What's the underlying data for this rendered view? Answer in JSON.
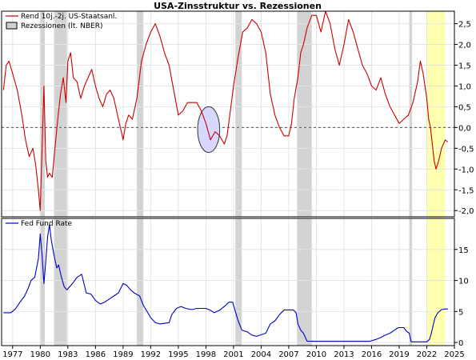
{
  "chart_data": {
    "type": "line",
    "title": "USA-Zinsstruktur vs. Rezessionen",
    "x_tick_labels": [
      "1977",
      "1980",
      "1983",
      "1986",
      "1989",
      "1992",
      "1995",
      "1998",
      "2001",
      "2004",
      "2007",
      "2010",
      "2013",
      "2016",
      "2019",
      "2022",
      "2025"
    ],
    "xlim": [
      1975.8,
      2025
    ],
    "recessions": [
      [
        1980.0,
        1980.5
      ],
      [
        1981.5,
        1982.9
      ],
      [
        1990.5,
        1991.2
      ],
      [
        2001.2,
        2001.9
      ],
      [
        2007.9,
        2009.5
      ],
      [
        2020.1,
        2020.4
      ]
    ],
    "highlight": {
      "range": [
        2022.0,
        2024.0
      ],
      "color": "#ffffb0"
    },
    "grid": true,
    "panels": [
      {
        "id": "top",
        "ylim": [
          -2.15,
          2.8
        ],
        "y_tick_labels": [
          "2,5",
          "2,0",
          "1,5",
          "1,0",
          "0,5",
          "0,0",
          "-0,5",
          "-1,0",
          "-1,5",
          "-2,0"
        ],
        "y_ticks": [
          2.5,
          2.0,
          1.5,
          1.0,
          0.5,
          0.0,
          -0.5,
          -1.0,
          -1.5,
          -2.0
        ],
        "zero_line": "dashed",
        "legend": {
          "placement": "top-left",
          "entries": [
            {
              "label": "Rend 10j.-2j. US-Staatsanl.",
              "kind": "line",
              "color": "#cc0000"
            },
            {
              "label": "Rezessionen (lt. NBER)",
              "kind": "box",
              "color": "#d0d0d0"
            }
          ]
        },
        "ellipse": {
          "center": [
            1998.3,
            -0.05
          ],
          "radii": [
            1.2,
            0.55
          ],
          "fill": "#d8d8ff",
          "stroke": "#333333"
        },
        "series": [
          {
            "name": "Rend 10j.-2j. US-Staatsanl.",
            "color": "#cc0000",
            "x": [
              1976.0,
              1976.3,
              1976.6,
              1977.0,
              1977.5,
              1978.0,
              1978.4,
              1978.8,
              1979.2,
              1979.5,
              1979.8,
              1980.0,
              1980.2,
              1980.4,
              1980.6,
              1980.8,
              1981.0,
              1981.3,
              1981.6,
              1981.9,
              1982.2,
              1982.5,
              1982.8,
              1983.0,
              1983.3,
              1983.6,
              1984.0,
              1984.4,
              1984.8,
              1985.2,
              1985.6,
              1986.0,
              1986.4,
              1986.8,
              1987.2,
              1987.6,
              1988.0,
              1988.5,
              1989.0,
              1989.3,
              1989.6,
              1990.0,
              1990.5,
              1991.0,
              1991.5,
              1992.0,
              1992.5,
              1993.0,
              1993.5,
              1994.0,
              1994.5,
              1995.0,
              1995.5,
              1996.0,
              1996.5,
              1997.0,
              1997.5,
              1998.0,
              1998.5,
              1999.0,
              1999.5,
              2000.0,
              2000.3,
              2000.6,
              2001.0,
              2001.5,
              2002.0,
              2002.5,
              2003.0,
              2003.5,
              2004.0,
              2004.5,
              2005.0,
              2005.5,
              2006.0,
              2006.5,
              2007.0,
              2007.3,
              2007.6,
              2008.0,
              2008.3,
              2008.6,
              2009.0,
              2009.5,
              2010.0,
              2010.5,
              2011.0,
              2011.5,
              2012.0,
              2012.5,
              2013.0,
              2013.5,
              2014.0,
              2014.5,
              2015.0,
              2015.5,
              2016.0,
              2016.5,
              2017.0,
              2017.5,
              2018.0,
              2018.5,
              2019.0,
              2019.5,
              2020.0,
              2020.5,
              2021.0,
              2021.3,
              2021.6,
              2022.0,
              2022.2,
              2022.4,
              2022.6,
              2022.8,
              2023.0,
              2023.3,
              2023.6,
              2024.0,
              2024.3
            ],
            "y": [
              0.9,
              1.5,
              1.6,
              1.3,
              0.9,
              0.3,
              -0.3,
              -0.7,
              -0.5,
              -0.9,
              -1.5,
              -2.0,
              -0.5,
              1.0,
              -0.8,
              -1.2,
              -1.1,
              -1.2,
              -0.5,
              0.2,
              0.8,
              1.2,
              0.6,
              1.6,
              1.8,
              1.2,
              1.1,
              0.7,
              1.0,
              1.2,
              1.4,
              1.0,
              0.7,
              0.5,
              0.8,
              0.9,
              0.7,
              0.2,
              -0.3,
              0.1,
              0.3,
              0.2,
              0.7,
              1.6,
              2.0,
              2.3,
              2.5,
              2.2,
              1.8,
              1.5,
              0.9,
              0.3,
              0.4,
              0.6,
              0.6,
              0.6,
              0.4,
              0.1,
              -0.3,
              -0.1,
              -0.2,
              -0.4,
              -0.2,
              0.3,
              1.0,
              1.7,
              2.3,
              2.4,
              2.6,
              2.5,
              2.3,
              1.8,
              0.8,
              0.3,
              0.0,
              -0.2,
              -0.2,
              0.1,
              0.7,
              1.2,
              1.8,
              2.0,
              2.4,
              2.7,
              2.7,
              2.3,
              2.8,
              2.5,
              1.9,
              1.5,
              2.0,
              2.6,
              2.3,
              1.9,
              1.5,
              1.3,
              1.0,
              0.9,
              1.2,
              0.8,
              0.5,
              0.3,
              0.1,
              0.2,
              0.3,
              0.6,
              1.1,
              1.6,
              1.3,
              0.7,
              0.2,
              0.0,
              -0.4,
              -0.8,
              -1.0,
              -0.8,
              -0.5,
              -0.3,
              -0.35
            ]
          }
        ]
      },
      {
        "id": "bottom",
        "ylim": [
          -0.5,
          20
        ],
        "y_tick_labels": [
          "15",
          "10",
          "5",
          "0"
        ],
        "y_ticks": [
          15,
          10,
          5,
          0
        ],
        "legend": {
          "placement": "top-left",
          "entries": [
            {
              "label": "Fed Fund Rate",
              "kind": "line",
              "color": "#0000cc"
            }
          ]
        },
        "series": [
          {
            "name": "Fed Fund Rate",
            "color": "#0000cc",
            "x": [
              1976.0,
              1976.8,
              1977.3,
              1977.8,
              1978.3,
              1978.7,
              1979.0,
              1979.4,
              1979.8,
              1980.0,
              1980.2,
              1980.4,
              1980.6,
              1980.8,
              1981.0,
              1981.2,
              1981.5,
              1981.8,
              1982.0,
              1982.3,
              1982.6,
              1982.9,
              1983.5,
              1984.0,
              1984.5,
              1985.0,
              1985.5,
              1986.0,
              1986.5,
              1987.0,
              1987.5,
              1988.0,
              1988.5,
              1989.0,
              1989.4,
              1989.8,
              1990.2,
              1990.8,
              1991.2,
              1991.6,
              1992.0,
              1992.5,
              1993.0,
              1994.0,
              1994.3,
              1994.8,
              1995.3,
              1995.8,
              1996.5,
              1997.0,
              1998.0,
              1998.5,
              1998.9,
              1999.5,
              2000.0,
              2000.5,
              2000.9,
              2001.2,
              2001.5,
              2001.9,
              2002.5,
              2003.0,
              2003.5,
              2004.5,
              2005.0,
              2005.5,
              2006.0,
              2006.5,
              2007.5,
              2007.8,
              2008.0,
              2008.3,
              2008.6,
              2008.9,
              2009.0,
              2015.8,
              2016.5,
              2017.0,
              2017.5,
              2018.0,
              2018.5,
              2018.9,
              2019.5,
              2019.8,
              2020.1,
              2020.3,
              2022.0,
              2022.3,
              2022.5,
              2022.7,
              2022.9,
              2023.2,
              2023.6,
              2024.0,
              2024.3
            ],
            "y": [
              4.8,
              4.8,
              5.4,
              6.5,
              7.5,
              8.8,
              10.0,
              10.5,
              13.5,
              17.5,
              14.0,
              9.5,
              13.0,
              17.0,
              19.0,
              16.5,
              14.0,
              12.0,
              12.5,
              10.5,
              9.0,
              8.5,
              9.5,
              10.5,
              11.0,
              8.0,
              7.8,
              6.8,
              6.2,
              6.5,
              7.0,
              7.5,
              8.0,
              9.5,
              9.2,
              8.5,
              8.0,
              7.5,
              6.0,
              5.0,
              4.0,
              3.2,
              3.0,
              3.2,
              4.5,
              5.5,
              5.8,
              5.5,
              5.3,
              5.5,
              5.5,
              5.2,
              4.8,
              5.2,
              5.8,
              6.5,
              6.5,
              5.0,
              3.5,
              2.0,
              1.7,
              1.2,
              1.0,
              1.5,
              3.0,
              3.5,
              4.5,
              5.25,
              5.25,
              4.8,
              3.0,
              2.0,
              1.5,
              0.5,
              0.2,
              0.2,
              0.5,
              0.8,
              1.2,
              1.5,
              2.0,
              2.4,
              2.4,
              1.8,
              1.5,
              0.1,
              0.1,
              0.5,
              1.5,
              2.8,
              4.0,
              4.8,
              5.3,
              5.4,
              5.4
            ]
          }
        ]
      }
    ]
  }
}
